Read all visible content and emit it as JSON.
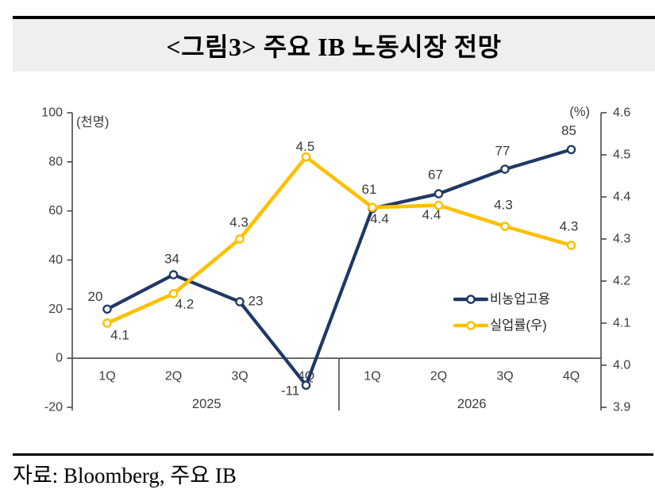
{
  "header": {
    "title": "<그림3> 주요 IB 노동시장 전망"
  },
  "footer": {
    "source": "자료: Bloomberg, 주요 IB"
  },
  "chart_data": {
    "type": "line",
    "dual_axis": true,
    "categories": [
      "1Q",
      "2Q",
      "3Q",
      "4Q",
      "1Q",
      "2Q",
      "3Q",
      "4Q"
    ],
    "year_groups": [
      {
        "label": "2025",
        "from": 0,
        "to": 3
      },
      {
        "label": "2026",
        "from": 4,
        "to": 7
      }
    ],
    "left_axis": {
      "label": "(천명)",
      "max": 100,
      "min": -20,
      "ticks": [
        "100",
        "80",
        "60",
        "40",
        "20",
        "0",
        "-20"
      ]
    },
    "right_axis": {
      "label": "(%)",
      "max": 4.6,
      "min": 3.9,
      "ticks": [
        "4.6",
        "4.5",
        "4.4",
        "4.3",
        "4.2",
        "4.1",
        "4.0",
        "3.9"
      ]
    },
    "series": [
      {
        "name": "비농업고용",
        "axis": "left",
        "color": "#1F3864",
        "values": [
          20,
          34,
          23,
          -11,
          61,
          67,
          77,
          85
        ],
        "labels": [
          "20",
          "34",
          "23",
          "-11",
          "61",
          "67",
          "77",
          "85"
        ],
        "label_offsets": [
          [
            -15,
            -16
          ],
          [
            -2,
            -20
          ],
          [
            20,
            -1
          ],
          [
            -20,
            7
          ],
          [
            -4,
            -24
          ],
          [
            -4,
            -24
          ],
          [
            -3,
            -23
          ],
          [
            -3,
            -24
          ]
        ]
      },
      {
        "name": "실업률(우)",
        "axis": "right",
        "color": "#FFC000",
        "values": [
          4.1,
          4.2,
          4.3,
          4.5,
          4.4,
          4.4,
          4.3,
          4.3
        ],
        "plotted": [
          4.1,
          4.17,
          4.3,
          4.495,
          4.375,
          4.38,
          4.33,
          4.285
        ],
        "labels": [
          "4.1",
          "4.2",
          "4.3",
          "4.5",
          "4.4",
          "4.4",
          "4.3",
          "4.3"
        ],
        "label_offsets": [
          [
            16,
            15
          ],
          [
            14,
            13
          ],
          [
            -1,
            -21
          ],
          [
            -1,
            -13
          ],
          [
            9,
            14
          ],
          [
            -9,
            12
          ],
          [
            -2,
            -27
          ],
          [
            -3,
            -24
          ]
        ]
      }
    ],
    "legend": {
      "entries": [
        "비농업고용",
        "실업률(우)"
      ],
      "position": "center-right"
    },
    "grid": false
  }
}
